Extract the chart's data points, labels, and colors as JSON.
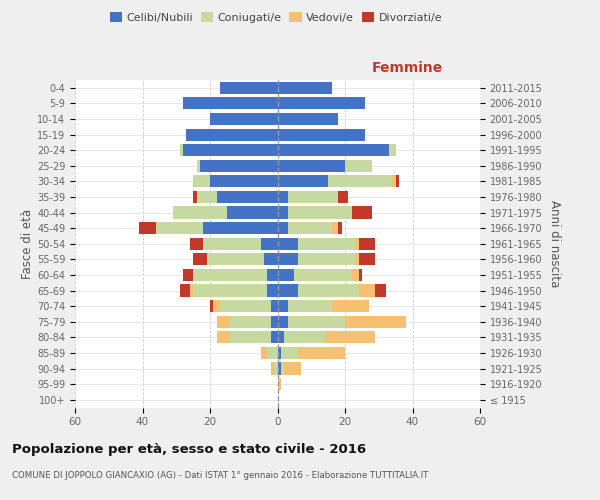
{
  "age_groups": [
    "100+",
    "95-99",
    "90-94",
    "85-89",
    "80-84",
    "75-79",
    "70-74",
    "65-69",
    "60-64",
    "55-59",
    "50-54",
    "45-49",
    "40-44",
    "35-39",
    "30-34",
    "25-29",
    "20-24",
    "15-19",
    "10-14",
    "5-9",
    "0-4"
  ],
  "birth_years": [
    "≤ 1915",
    "1916-1920",
    "1921-1925",
    "1926-1930",
    "1931-1935",
    "1936-1940",
    "1941-1945",
    "1946-1950",
    "1951-1955",
    "1956-1960",
    "1961-1965",
    "1966-1970",
    "1971-1975",
    "1976-1980",
    "1981-1985",
    "1986-1990",
    "1991-1995",
    "1996-2000",
    "2001-2005",
    "2006-2010",
    "2011-2015"
  ],
  "males": {
    "celibi": [
      0,
      0,
      0,
      0,
      2,
      2,
      2,
      3,
      3,
      4,
      5,
      22,
      15,
      18,
      20,
      23,
      28,
      27,
      20,
      28,
      17
    ],
    "coniugati": [
      0,
      0,
      1,
      3,
      12,
      12,
      15,
      22,
      22,
      17,
      17,
      14,
      16,
      6,
      5,
      1,
      1,
      0,
      0,
      0,
      0
    ],
    "vedovi": [
      0,
      0,
      1,
      2,
      4,
      4,
      2,
      1,
      0,
      0,
      0,
      0,
      0,
      0,
      0,
      0,
      0,
      0,
      0,
      0,
      0
    ],
    "divorziati": [
      0,
      0,
      0,
      0,
      0,
      0,
      1,
      3,
      3,
      4,
      4,
      5,
      0,
      1,
      0,
      0,
      0,
      0,
      0,
      0,
      0
    ]
  },
  "females": {
    "nubili": [
      0,
      0,
      1,
      1,
      2,
      3,
      3,
      6,
      5,
      6,
      6,
      3,
      3,
      3,
      15,
      20,
      33,
      26,
      18,
      26,
      16
    ],
    "coniugate": [
      0,
      0,
      1,
      5,
      12,
      17,
      13,
      18,
      17,
      17,
      17,
      13,
      19,
      15,
      19,
      8,
      2,
      0,
      0,
      0,
      0
    ],
    "vedove": [
      0,
      1,
      5,
      14,
      15,
      18,
      11,
      5,
      2,
      1,
      1,
      2,
      0,
      0,
      1,
      0,
      0,
      0,
      0,
      0,
      0
    ],
    "divorziate": [
      0,
      0,
      0,
      0,
      0,
      0,
      0,
      3,
      1,
      5,
      5,
      1,
      6,
      3,
      1,
      0,
      0,
      0,
      0,
      0,
      0
    ]
  },
  "color_celibi": "#4472c4",
  "color_coniugati": "#c5d9a0",
  "color_vedovi": "#f5c06f",
  "color_divorziati": "#c0392b",
  "title": "Popolazione per età, sesso e stato civile - 2016",
  "subtitle": "COMUNE DI JOPPOLO GIANCAXIO (AG) - Dati ISTAT 1° gennaio 2016 - Elaborazione TUTTITALIA.IT",
  "ylabel_left": "Fasce di età",
  "ylabel_right": "Anni di nascita",
  "xlabel_right": "Femmine",
  "xlim": 60,
  "background_color": "#efefef",
  "plot_bg": "#ffffff"
}
